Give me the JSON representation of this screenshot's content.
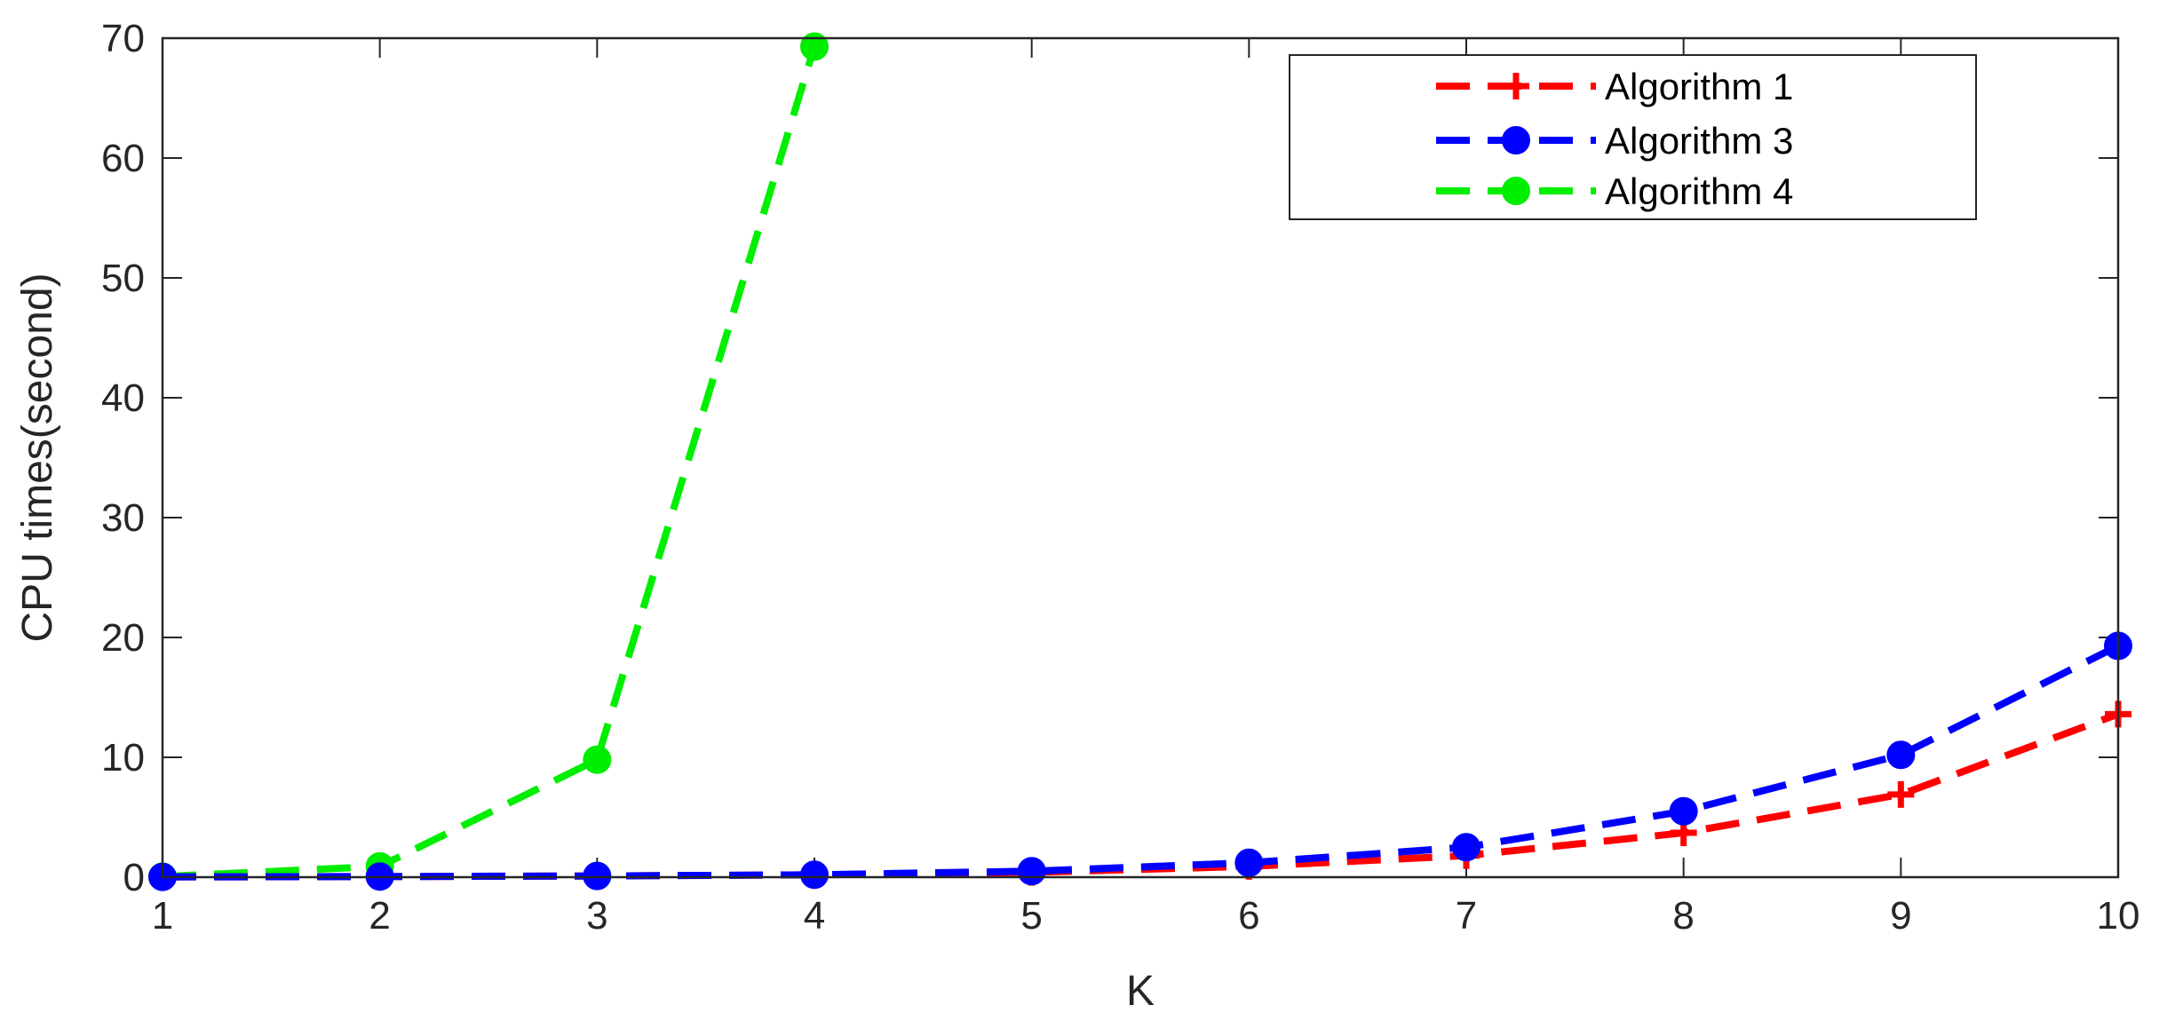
{
  "chart_data": {
    "type": "line",
    "title": "",
    "xlabel": "K",
    "ylabel": "CPU times(second)",
    "xlim": [
      1,
      10
    ],
    "ylim": [
      0,
      70
    ],
    "xticks": [
      1,
      2,
      3,
      4,
      5,
      6,
      7,
      8,
      9,
      10
    ],
    "yticks": [
      0,
      10,
      20,
      30,
      40,
      50,
      60,
      70
    ],
    "grid": false,
    "legend_position": "top-right",
    "series": [
      {
        "name": "Algorithm 1",
        "color": "#ff0000",
        "marker": "plus",
        "line_style": "dashed",
        "x": [
          1,
          2,
          3,
          4,
          5,
          6,
          7,
          8,
          9,
          10
        ],
        "y": [
          0.02,
          0.05,
          0.1,
          0.2,
          0.4,
          0.9,
          1.8,
          3.7,
          6.9,
          13.6
        ]
      },
      {
        "name": "Algorithm 3",
        "color": "#0000ff",
        "marker": "circle",
        "line_style": "dashed",
        "x": [
          1,
          2,
          3,
          4,
          5,
          6,
          7,
          8,
          9,
          10
        ],
        "y": [
          0.02,
          0.05,
          0.1,
          0.2,
          0.5,
          1.2,
          2.5,
          5.5,
          10.2,
          19.3
        ]
      },
      {
        "name": "Algorithm 4",
        "color": "#00ee00",
        "marker": "circle",
        "line_style": "dashed",
        "x": [
          1,
          2,
          3,
          4
        ],
        "y": [
          0.05,
          0.9,
          9.8,
          69.3
        ]
      }
    ]
  }
}
